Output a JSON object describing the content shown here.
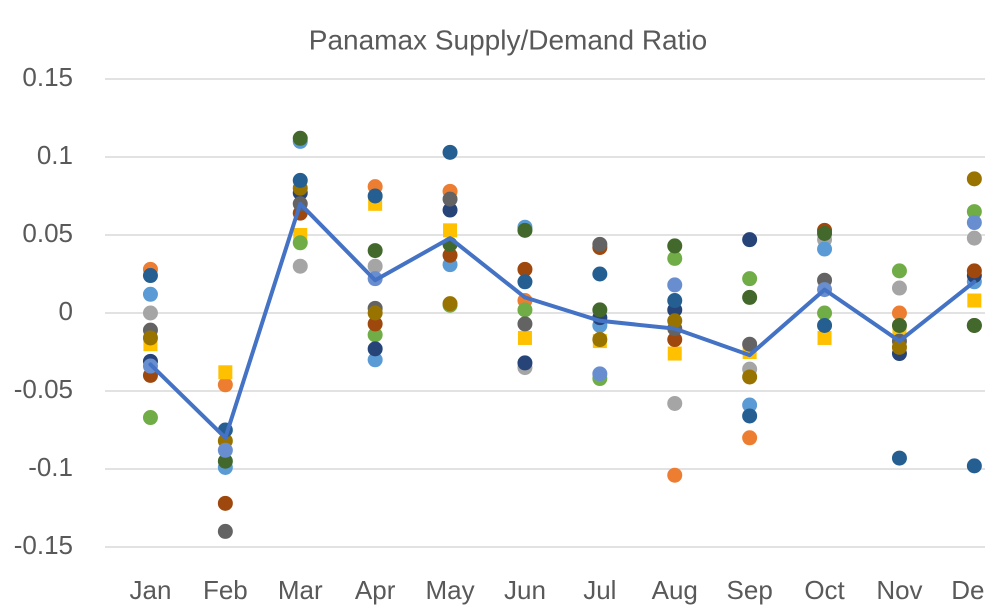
{
  "chart_data": {
    "type": "scatter_line",
    "title": "Panamax Supply/Demand Ratio",
    "categories": [
      "Jan",
      "Feb",
      "Mar",
      "Apr",
      "May",
      "Jun",
      "Jul",
      "Aug",
      "Sep",
      "Oct",
      "Nov",
      "Dec"
    ],
    "ylim": [
      -0.15,
      0.15
    ],
    "yticks": [
      0.15,
      0.1,
      0.05,
      0,
      -0.05,
      -0.1,
      -0.15
    ],
    "grid": true,
    "series": [
      {
        "color": "#ed7d31",
        "marker": "circle",
        "values": [
          0.028,
          -0.046,
          null,
          0.081,
          0.078,
          0.008,
          null,
          -0.104,
          -0.08,
          null,
          0,
          null
        ]
      },
      {
        "color": "#a5a5a5",
        "marker": "circle",
        "values": [
          0,
          null,
          0.03,
          0.03,
          null,
          -0.035,
          null,
          -0.058,
          -0.036,
          0.047,
          0.016,
          0.048
        ]
      },
      {
        "color": "#ffc000",
        "marker": "square",
        "values": [
          -0.02,
          -0.038,
          0.05,
          0.07,
          0.053,
          -0.016,
          -0.018,
          -0.026,
          -0.025,
          -0.016,
          -0.012,
          0.008
        ]
      },
      {
        "color": "#5b9bd5",
        "marker": "circle",
        "values": [
          0.012,
          -0.099,
          0.11,
          -0.03,
          0.031,
          0.055,
          -0.008,
          null,
          -0.059,
          0.041,
          null,
          0.02
        ]
      },
      {
        "color": "#70ad47",
        "marker": "circle",
        "values": [
          -0.067,
          null,
          0.045,
          -0.014,
          0.005,
          0.002,
          -0.042,
          0.035,
          0.022,
          0,
          0.027,
          0.065
        ]
      },
      {
        "color": "#264478",
        "marker": "circle",
        "values": [
          -0.031,
          null,
          0.077,
          -0.023,
          0.066,
          -0.032,
          -0.003,
          0.002,
          0.047,
          null,
          -0.026,
          0.024
        ]
      },
      {
        "color": "#9e480e",
        "marker": "circle",
        "values": [
          -0.04,
          -0.122,
          0.064,
          -0.007,
          0.037,
          0.028,
          0.042,
          -0.017,
          null,
          0.053,
          null,
          0.027
        ]
      },
      {
        "color": "#636363",
        "marker": "circle",
        "values": [
          -0.011,
          -0.14,
          0.07,
          0.003,
          0.073,
          -0.007,
          0.044,
          -0.01,
          -0.02,
          0.021,
          -0.018,
          -0.008
        ]
      },
      {
        "color": "#997300",
        "marker": "circle",
        "values": [
          -0.016,
          -0.082,
          0.08,
          0,
          0.006,
          null,
          -0.017,
          -0.005,
          -0.041,
          null,
          -0.022,
          0.086
        ]
      },
      {
        "color": "#255e91",
        "marker": "circle",
        "values": [
          0.024,
          -0.075,
          0.085,
          0.075,
          0.103,
          0.02,
          0.025,
          0.008,
          -0.066,
          -0.008,
          -0.093,
          -0.098
        ]
      },
      {
        "color": "#43682b",
        "marker": "circle",
        "values": [
          null,
          -0.095,
          0.112,
          0.04,
          0.044,
          0.053,
          0.002,
          0.043,
          0.01,
          0.051,
          -0.008,
          -0.008
        ]
      },
      {
        "color": "#698ed0",
        "marker": "circle",
        "values": [
          -0.034,
          -0.088,
          null,
          0.022,
          null,
          null,
          -0.039,
          0.018,
          null,
          0.015,
          null,
          0.058
        ]
      }
    ],
    "line": {
      "color": "#4472c4",
      "values": [
        -0.033,
        -0.08,
        0.07,
        0.021,
        0.048,
        0.01,
        -0.005,
        -0.01,
        -0.027,
        0.015,
        -0.018,
        0.02
      ]
    }
  }
}
